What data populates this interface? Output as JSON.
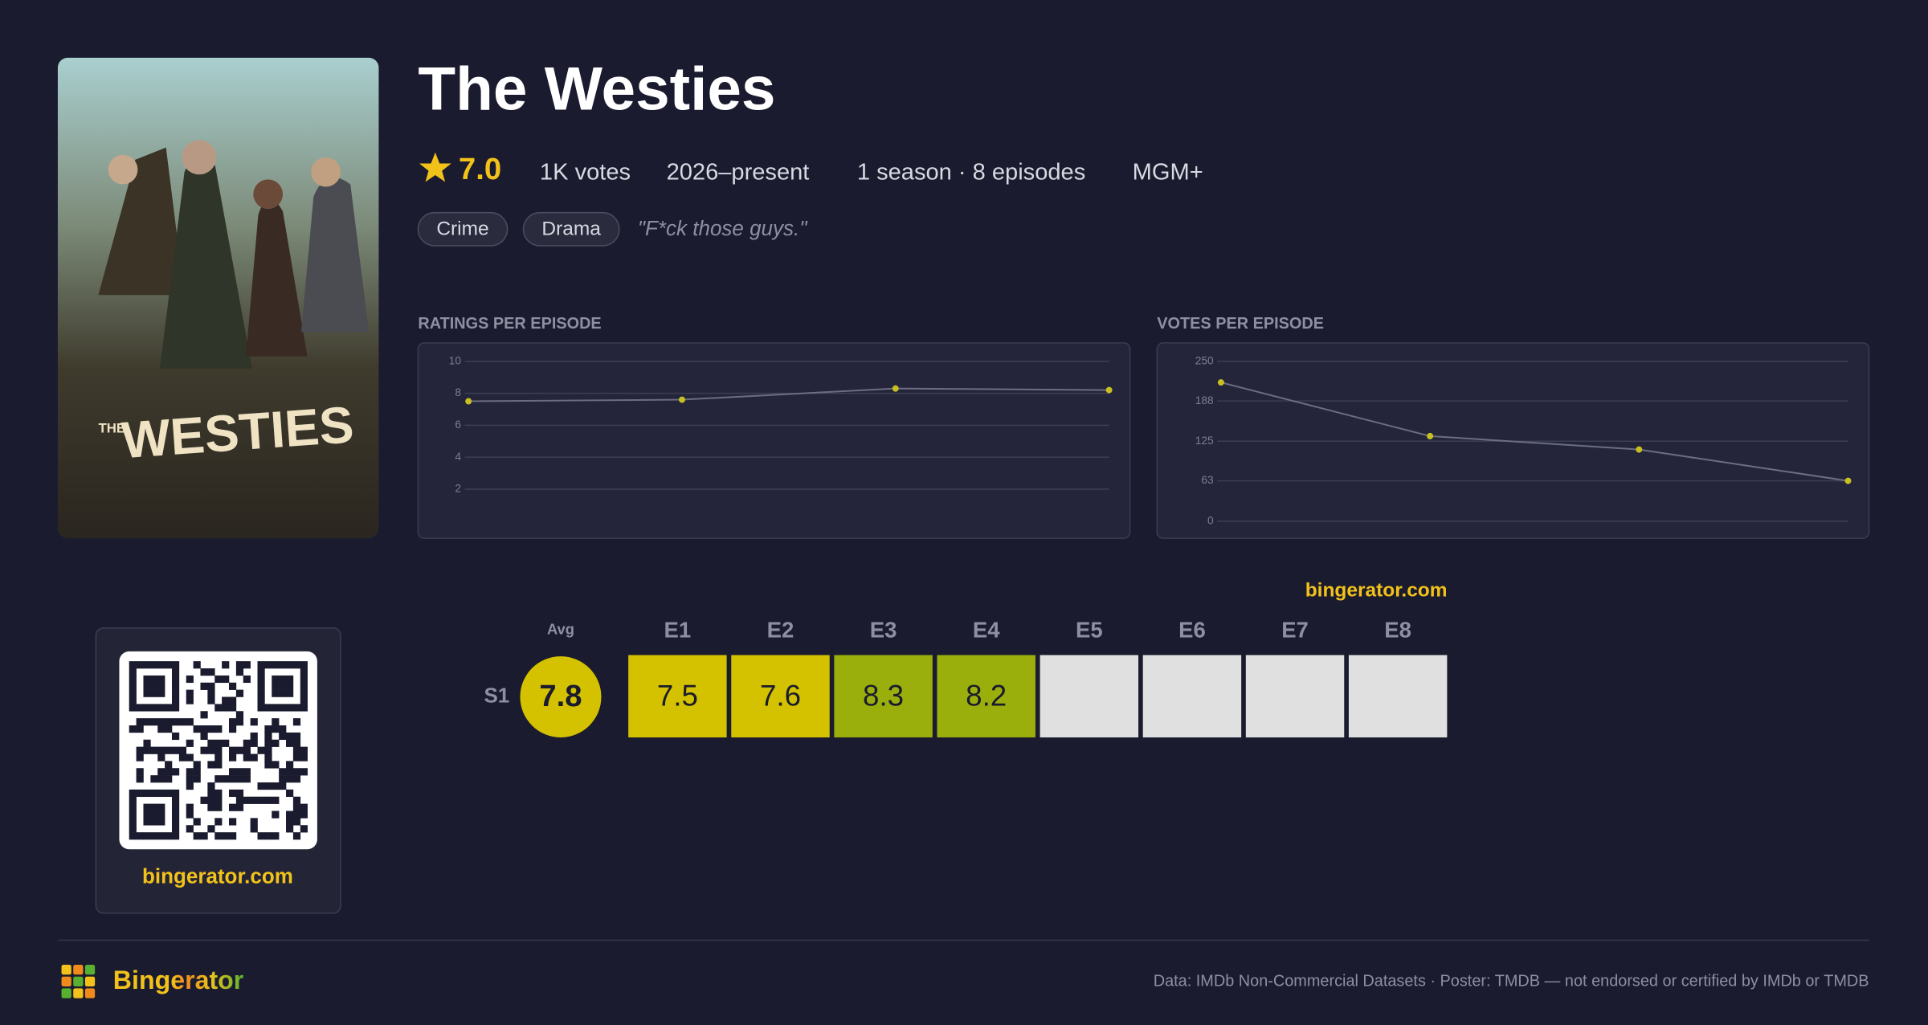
{
  "header": {
    "title": "The Westies",
    "rating": "7.0",
    "votes": "1K votes",
    "years": "2026–present",
    "seasons": "1 season · 8 episodes",
    "network": "MGM+",
    "genres": [
      "Crime",
      "Drama"
    ],
    "tagline": "\"F*ck those guys.\""
  },
  "poster": {
    "kicker": "THE",
    "title": "WESTIES"
  },
  "chart_data": [
    {
      "type": "line",
      "title": "RATINGS PER EPISODE",
      "values": [
        7.5,
        7.6,
        8.3,
        8.2
      ],
      "color": "#c8c020",
      "line_color": "#6b6e80",
      "ylim": [
        0,
        10
      ],
      "yticks": [
        2,
        4,
        6,
        8,
        10
      ],
      "grid": true
    },
    {
      "type": "line",
      "title": "VOTES PER EPISODE",
      "values": [
        217,
        133,
        112,
        63
      ],
      "color": "#c8c020",
      "line_color": "#6b6e80",
      "ylim": [
        0,
        250
      ],
      "yticks": [
        0,
        63,
        125,
        188,
        250
      ],
      "grid": true
    }
  ],
  "heatmap": {
    "site": "bingerator.com",
    "avg_label": "Avg",
    "avg": 7.8,
    "season": "S1",
    "episodes": [
      "E1",
      "E2",
      "E3",
      "E4",
      "E5",
      "E6",
      "E7",
      "E8"
    ],
    "ratings": [
      7.5,
      7.6,
      8.3,
      8.2,
      null,
      null,
      null,
      null
    ]
  },
  "qr": {
    "caption": "bingerator.com"
  },
  "footer": {
    "brand": "Bingerator",
    "credits": "Data: IMDb Non-Commercial Datasets · Poster: TMDB — not endorsed or certified by IMDb or TMDB"
  }
}
